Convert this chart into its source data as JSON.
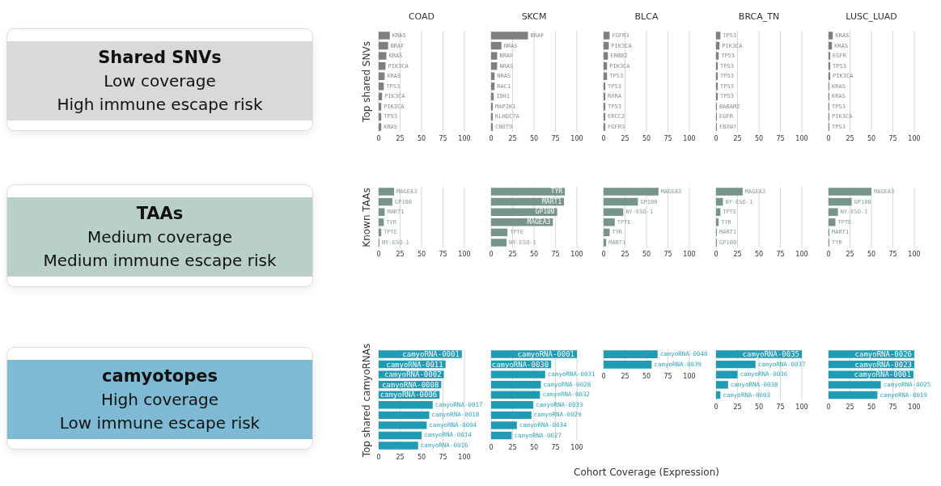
{
  "chart_data": [
    {
      "type": "other",
      "title": "Shared SNVs",
      "annotations": [
        "Low coverage",
        "High immune escape risk"
      ],
      "color": "#d9d9d9"
    },
    {
      "type": "bar",
      "orientation": "horizontal",
      "title": "COAD",
      "ylabel": "Top shared SNVs",
      "categories": [
        "KRAS",
        "BRAF",
        "KRAS",
        "PIK3CA",
        "KRAS",
        "TP53",
        "PIK3CA",
        "PIK3CA",
        "TP53",
        "KRAS"
      ],
      "values": [
        13,
        11,
        9,
        8,
        7,
        6,
        4,
        3,
        3,
        3
      ],
      "color": "#7f7f7f",
      "xlim": [
        0,
        100
      ],
      "xticks": [
        0,
        25,
        50,
        75,
        100
      ],
      "grid": "x"
    },
    {
      "type": "bar",
      "orientation": "horizontal",
      "title": "SKCM",
      "categories": [
        "BRAF",
        "NRAS",
        "BRAF",
        "NRAS",
        "NRAS",
        "RAC1",
        "IDH1",
        "MAP2K1",
        "KLHDC7A",
        "CNOT9"
      ],
      "values": [
        43,
        12,
        7,
        7,
        4,
        4,
        3,
        2,
        2,
        2
      ],
      "color": "#7f7f7f",
      "xlim": [
        0,
        100
      ],
      "xticks": [
        0,
        25,
        50,
        75,
        100
      ],
      "grid": "x"
    },
    {
      "type": "bar",
      "orientation": "horizontal",
      "title": "BLCA",
      "categories": [
        "FGFR3",
        "PIK3CA",
        "ERBB2",
        "PIK3CA",
        "TP53",
        "TP53",
        "RXRA",
        "TP53",
        "ERCC2",
        "FGFR3"
      ],
      "values": [
        7,
        6,
        5,
        4,
        4,
        2,
        2,
        2,
        2,
        2
      ],
      "color": "#7f7f7f",
      "xlim": [
        0,
        100
      ],
      "xticks": [
        0,
        25,
        50,
        75,
        100
      ],
      "grid": "x"
    },
    {
      "type": "bar",
      "orientation": "horizontal",
      "title": "BRCA_TN",
      "categories": [
        "TP53",
        "PIK3CA",
        "TP53",
        "TP53",
        "TP53",
        "TP53",
        "TP53",
        "BABAM2",
        "EGFR",
        "FBXW7"
      ],
      "values": [
        5,
        4,
        3,
        2,
        2,
        2,
        2,
        1,
        1,
        1
      ],
      "color": "#7f7f7f",
      "xlim": [
        0,
        100
      ],
      "xticks": [
        0,
        25,
        50,
        75,
        100
      ],
      "grid": "x"
    },
    {
      "type": "bar",
      "orientation": "horizontal",
      "title": "LUSC_LUAD",
      "categories": [
        "KRAS",
        "KRAS",
        "EGFR",
        "TP53",
        "PIK3CA",
        "KRAS",
        "KRAS",
        "TP53",
        "PIK3CA",
        "TP53"
      ],
      "values": [
        5,
        4,
        2,
        2,
        2,
        1,
        1,
        1,
        1,
        1
      ],
      "color": "#7f7f7f",
      "xlim": [
        0,
        100
      ],
      "xticks": [
        0,
        25,
        50,
        75,
        100
      ],
      "grid": "x"
    },
    {
      "type": "other",
      "title": "TAAs",
      "annotations": [
        "Medium coverage",
        "Medium immune escape risk"
      ],
      "color": "#b9d0c7"
    },
    {
      "type": "bar",
      "orientation": "horizontal",
      "ylabel": "Known TAAs",
      "categories": [
        "MAGEA3",
        "GP100",
        "MART1",
        "TYR",
        "TPTE",
        "NY-ESO-1"
      ],
      "values": [
        18,
        16,
        7,
        6,
        3,
        1
      ],
      "color": "#769488",
      "xlim": [
        0,
        100
      ],
      "xticks": [
        0,
        25,
        50,
        75,
        100
      ],
      "grid": "x"
    },
    {
      "type": "bar",
      "orientation": "horizontal",
      "categories": [
        "TYR",
        "MART1",
        "GP100",
        "MAGEA3",
        "TPTE",
        "NY-ESO-1"
      ],
      "values": [
        86,
        85,
        77,
        72,
        19,
        18
      ],
      "color": "#769488",
      "xlim": [
        0,
        100
      ],
      "xticks": [
        0,
        25,
        50,
        75,
        100
      ],
      "grid": "x"
    },
    {
      "type": "bar",
      "orientation": "horizontal",
      "categories": [
        "MAGEA3",
        "GP100",
        "NY-ESO-1",
        "TPTE",
        "TYR",
        "MART1"
      ],
      "values": [
        64,
        40,
        23,
        13,
        7,
        3
      ],
      "color": "#769488",
      "xlim": [
        0,
        100
      ],
      "xticks": [
        0,
        25,
        50,
        75,
        100
      ],
      "grid": "x"
    },
    {
      "type": "bar",
      "orientation": "horizontal",
      "categories": [
        "MAGEA3",
        "NY-ESO-1",
        "TPTE",
        "TYR",
        "MART1",
        "GP100"
      ],
      "values": [
        31,
        8,
        5,
        3,
        1,
        1
      ],
      "color": "#769488",
      "xlim": [
        0,
        100
      ],
      "xticks": [
        0,
        25,
        50,
        75,
        100
      ],
      "grid": "x"
    },
    {
      "type": "bar",
      "orientation": "horizontal",
      "categories": [
        "MAGEA3",
        "GP100",
        "NY-ESO-1",
        "TPTE",
        "MART1",
        "TYR"
      ],
      "values": [
        50,
        27,
        11,
        8,
        1,
        1
      ],
      "color": "#769488",
      "xlim": [
        0,
        100
      ],
      "xticks": [
        0,
        25,
        50,
        75,
        100
      ],
      "grid": "x"
    },
    {
      "type": "other",
      "title": "camyotopes",
      "annotations": [
        "High coverage",
        "Low immune escape risk"
      ],
      "color": "#7fbad5"
    },
    {
      "type": "bar",
      "orientation": "horizontal",
      "ylabel": "Top shared  camyoRNAs",
      "categories": [
        "camyoRNA-0001",
        "camyoRNA-0011",
        "camyoRNA-0002",
        "camyoRNA-0008",
        "camyoRNA-0006",
        "camyoRNA-0017",
        "camyoRNA-0018",
        "camyoRNA-0004",
        "camyoRNA-0014",
        "camyoRNA-0016"
      ],
      "values": [
        97,
        78,
        76,
        73,
        71,
        63,
        59,
        56,
        50,
        46
      ],
      "color": "#1f9bb4",
      "xlim": [
        0,
        100
      ],
      "xticks": [
        0,
        25,
        50,
        75,
        100
      ],
      "grid": "x"
    },
    {
      "type": "bar",
      "orientation": "horizontal",
      "categories": [
        "camyoRNA-0001",
        "camyoRNA-0030",
        "camyoRNA-0031",
        "camyoRNA-0028",
        "camyoRNA-0032",
        "camyoRNA-0033",
        "camyoRNA-0029",
        "camyoRNA-0034",
        "camyoRNA-0027"
      ],
      "values": [
        100,
        70,
        63,
        58,
        57,
        49,
        47,
        30,
        24
      ],
      "color": "#1f9bb4",
      "xlim": [
        0,
        100
      ],
      "xticks": [
        0,
        25,
        50,
        75,
        100
      ],
      "grid": "x"
    },
    {
      "type": "bar",
      "orientation": "horizontal",
      "xlabel": "Cohort Coverage (Expression)",
      "categories": [
        "camyoRNA-0040",
        "camyoRNA-0039"
      ],
      "values": [
        63,
        56
      ],
      "color": "#1f9bb4",
      "xlim": [
        0,
        100
      ],
      "xticks": [
        0,
        25,
        50,
        75,
        100
      ],
      "grid": "x"
    },
    {
      "type": "bar",
      "orientation": "horizontal",
      "categories": [
        "camyoRNA-0035",
        "camyoRNA-0037",
        "camyoRNA-0036",
        "camyoRNA-0038",
        "camyoRNA-0003"
      ],
      "values": [
        100,
        46,
        25,
        14,
        5
      ],
      "color": "#1f9bb4",
      "xlim": [
        0,
        100
      ],
      "xticks": [
        0,
        25,
        50,
        75,
        100
      ],
      "grid": "x"
    },
    {
      "type": "bar",
      "orientation": "horizontal",
      "categories": [
        "camyoRNA-0026",
        "camyoRNA-0023",
        "camyoRNA-0001",
        "camyoRNA-0025",
        "camyoRNA-0019"
      ],
      "values": [
        100,
        100,
        99,
        61,
        57
      ],
      "color": "#1f9bb4",
      "xlim": [
        0,
        100
      ],
      "xticks": [
        0,
        25,
        50,
        75,
        100
      ],
      "grid": "x"
    }
  ]
}
